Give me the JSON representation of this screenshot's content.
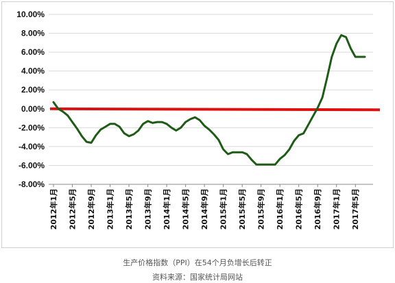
{
  "chart_data": {
    "type": "line",
    "title": "",
    "xlabel": "",
    "ylabel": "",
    "ylim": [
      -8,
      10
    ],
    "grid": "horizontal",
    "y_ticks": [
      "10.00%",
      "8.00%",
      "6.00%",
      "4.00%",
      "2.00%",
      "0.00%",
      "-2.00%",
      "-4.00%",
      "-6.00%",
      "-8.00%"
    ],
    "x_ticks": [
      "2012年1月",
      "2012年5月",
      "2012年9月",
      "2013年1月",
      "2013年5月",
      "2013年9月",
      "2014年1月",
      "2014年5月",
      "2014年9月",
      "2015年1月",
      "2015年5月",
      "2015年9月",
      "2016年1月",
      "2016年5月",
      "2016年9月",
      "2017年1月",
      "2017年5月"
    ],
    "reference_line": {
      "value": 0,
      "color": "#dd1111"
    },
    "series": [
      {
        "color": "#1e5c16",
        "x": [
          "2012-01",
          "2012-02",
          "2012-03",
          "2012-04",
          "2012-05",
          "2012-06",
          "2012-07",
          "2012-08",
          "2012-09",
          "2012-10",
          "2012-11",
          "2012-12",
          "2013-01",
          "2013-02",
          "2013-03",
          "2013-04",
          "2013-05",
          "2013-06",
          "2013-07",
          "2013-08",
          "2013-09",
          "2013-10",
          "2013-11",
          "2013-12",
          "2014-01",
          "2014-02",
          "2014-03",
          "2014-04",
          "2014-05",
          "2014-06",
          "2014-07",
          "2014-08",
          "2014-09",
          "2014-10",
          "2014-11",
          "2014-12",
          "2015-01",
          "2015-02",
          "2015-03",
          "2015-04",
          "2015-05",
          "2015-06",
          "2015-07",
          "2015-08",
          "2015-09",
          "2015-10",
          "2015-11",
          "2015-12",
          "2016-01",
          "2016-02",
          "2016-03",
          "2016-04",
          "2016-05",
          "2016-06",
          "2016-07",
          "2016-08",
          "2016-09",
          "2016-10",
          "2016-11",
          "2016-12",
          "2017-01",
          "2017-02",
          "2017-03",
          "2017-04",
          "2017-05",
          "2017-06",
          "2017-07"
        ],
        "values": [
          0.7,
          0.0,
          -0.3,
          -0.7,
          -1.4,
          -2.1,
          -2.9,
          -3.5,
          -3.6,
          -2.8,
          -2.2,
          -1.9,
          -1.6,
          -1.6,
          -1.9,
          -2.6,
          -2.9,
          -2.7,
          -2.3,
          -1.6,
          -1.3,
          -1.5,
          -1.4,
          -1.4,
          -1.6,
          -2.0,
          -2.3,
          -2.0,
          -1.4,
          -1.1,
          -0.9,
          -1.2,
          -1.8,
          -2.2,
          -2.7,
          -3.3,
          -4.3,
          -4.8,
          -4.6,
          -4.6,
          -4.6,
          -4.8,
          -5.4,
          -5.9,
          -5.9,
          -5.9,
          -5.9,
          -5.9,
          -5.3,
          -4.9,
          -4.3,
          -3.4,
          -2.8,
          -2.6,
          -1.7,
          -0.8,
          0.1,
          1.2,
          3.3,
          5.5,
          6.9,
          7.8,
          7.6,
          6.4,
          5.5,
          5.5,
          5.5
        ]
      }
    ]
  },
  "caption": {
    "title": "生产价格指数（PPI）在54个月负增长后转正",
    "source": "资料来源：国家统计局网站"
  }
}
